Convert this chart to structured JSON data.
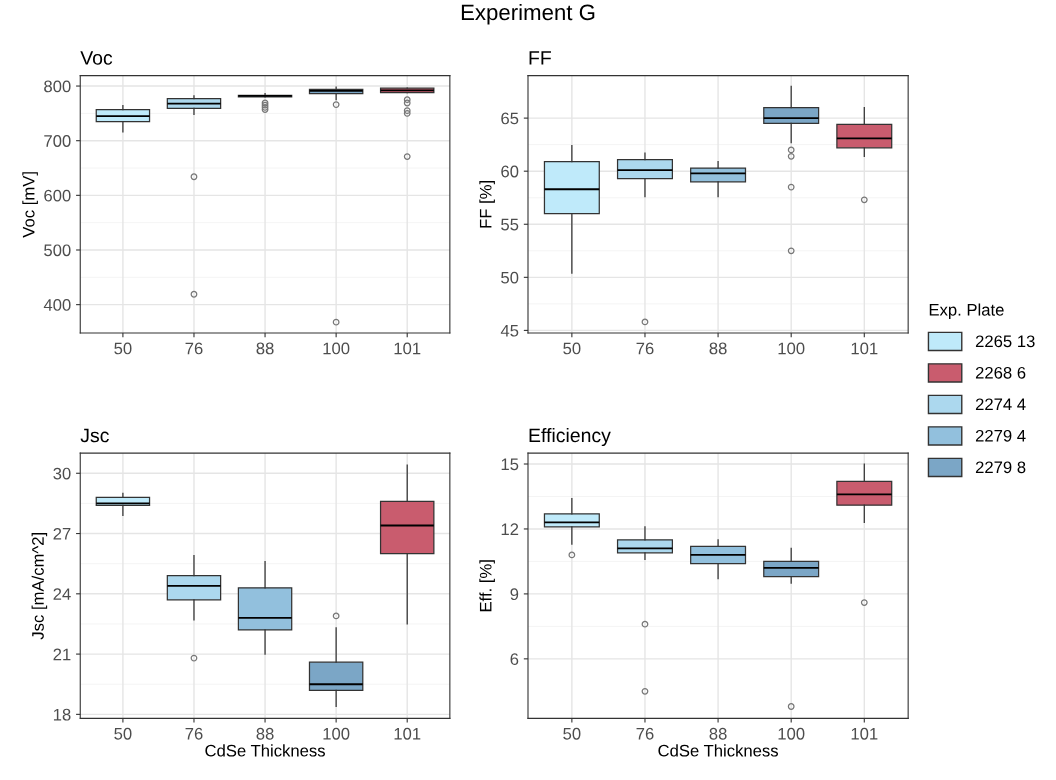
{
  "chart_data": [
    {
      "type": "box",
      "title": "Voc",
      "ylabel": "Voc [mV]",
      "annotations": [
        "Experiment G"
      ],
      "legend": "right",
      "legend_title": "Exp. Plate",
      "categories": [
        "50",
        "76",
        "88",
        "100",
        "101"
      ],
      "ylim": [
        348,
        819
      ],
      "yticks": [
        400,
        500,
        600,
        700,
        800
      ],
      "grid": true,
      "series": [
        {
          "name": "2265 13",
          "color": "#bfeafa",
          "boxes": [
            {
              "low": 716,
              "q1": 735,
              "median": 745,
              "q3": 757,
              "high": 764
            },
            null,
            null,
            null,
            null
          ]
        },
        {
          "name": "2268 6",
          "color": "#c95c6e",
          "boxes": [
            null,
            null,
            null,
            null,
            {
              "low": 788,
              "q1": 788,
              "median": 792,
              "q3": 796,
              "high": 796,
              "outliers": [
                775,
                769,
                755,
                750,
                671
              ]
            }
          ]
        },
        {
          "name": "2274 4",
          "color": "#acd8ee",
          "boxes": [
            null,
            {
              "low": 748,
              "q1": 759,
              "median": 768,
              "q3": 777,
              "high": 782,
              "outliers": [
                634,
                419
              ]
            },
            null,
            null,
            null
          ]
        },
        {
          "name": "2279 4",
          "color": "#92c0dd",
          "boxes": [
            null,
            null,
            {
              "low": 780,
              "q1": 780,
              "median": 782,
              "q3": 783,
              "high": 786,
              "outliers": [
                769,
                765,
                761,
                757
              ]
            },
            null,
            null
          ]
        },
        {
          "name": "2279 8",
          "color": "#7ba6c6",
          "boxes": [
            null,
            null,
            null,
            {
              "low": 775,
              "q1": 786,
              "median": 791,
              "q3": 794,
              "high": 798,
              "outliers": [
                766,
                368
              ]
            },
            null
          ]
        }
      ]
    },
    {
      "type": "box",
      "title": "FF",
      "ylabel": "FF [%]",
      "categories": [
        "50",
        "76",
        "88",
        "100",
        "101"
      ],
      "ylim": [
        44.75,
        69.0
      ],
      "yticks": [
        45,
        50,
        55,
        60,
        65
      ],
      "grid": true,
      "series": [
        {
          "color": "#bfeafa",
          "boxes": [
            {
              "low": 50.4,
              "q1": 56.0,
              "median": 58.3,
              "q3": 60.9,
              "high": 62.4
            },
            null,
            null,
            null,
            null
          ]
        },
        {
          "color": "#c95c6e",
          "boxes": [
            null,
            null,
            null,
            null,
            {
              "low": 61.4,
              "q1": 62.2,
              "median": 63.1,
              "q3": 64.4,
              "high": 66.0,
              "outliers": [
                57.3
              ]
            }
          ]
        },
        {
          "color": "#acd8ee",
          "boxes": [
            null,
            {
              "low": 57.6,
              "q1": 59.3,
              "median": 60.1,
              "q3": 61.1,
              "high": 61.7,
              "outliers": [
                45.8
              ]
            },
            null,
            null,
            null
          ]
        },
        {
          "color": "#92c0dd",
          "boxes": [
            null,
            null,
            {
              "low": 57.6,
              "q1": 59.0,
              "median": 59.8,
              "q3": 60.3,
              "high": 60.9
            },
            null,
            null
          ]
        },
        {
          "color": "#7ba6c6",
          "boxes": [
            null,
            null,
            null,
            {
              "low": 62.7,
              "q1": 64.5,
              "median": 65.0,
              "q3": 66.0,
              "high": 68.0,
              "outliers": [
                62.0,
                61.4,
                58.5,
                52.5
              ]
            },
            null
          ]
        }
      ]
    },
    {
      "type": "box",
      "title": "Jsc",
      "xlabel": "CdSe Thickness",
      "ylabel": "Jsc [mA/cm^2]",
      "categories": [
        "50",
        "76",
        "88",
        "100",
        "101"
      ],
      "ylim": [
        17.8,
        31.0
      ],
      "yticks": [
        18,
        21,
        24,
        27,
        30
      ],
      "grid": true,
      "series": [
        {
          "color": "#bfeafa",
          "boxes": [
            {
              "low": 27.9,
              "q1": 28.4,
              "median": 28.5,
              "q3": 28.8,
              "high": 29.0
            },
            null,
            null,
            null,
            null
          ]
        },
        {
          "color": "#c95c6e",
          "boxes": [
            null,
            null,
            null,
            null,
            {
              "low": 22.5,
              "q1": 26.0,
              "median": 27.4,
              "q3": 28.6,
              "high": 30.4
            }
          ]
        },
        {
          "color": "#acd8ee",
          "boxes": [
            null,
            {
              "low": 22.7,
              "q1": 23.7,
              "median": 24.4,
              "q3": 24.9,
              "high": 25.9,
              "outliers": [
                20.8
              ]
            },
            null,
            null,
            null
          ]
        },
        {
          "color": "#92c0dd",
          "boxes": [
            null,
            null,
            {
              "low": 21.0,
              "q1": 22.2,
              "median": 22.8,
              "q3": 24.3,
              "high": 25.6
            },
            null,
            null
          ]
        },
        {
          "color": "#7ba6c6",
          "boxes": [
            null,
            null,
            null,
            {
              "low": 18.4,
              "q1": 19.2,
              "median": 19.5,
              "q3": 20.6,
              "high": 22.3,
              "outliers": [
                22.9
              ]
            },
            null
          ]
        }
      ]
    },
    {
      "type": "box",
      "title": "Efficiency",
      "xlabel": "CdSe Thickness",
      "ylabel": "Eff. [%]",
      "categories": [
        "50",
        "76",
        "88",
        "100",
        "101"
      ],
      "ylim": [
        3.25,
        15.5
      ],
      "yticks": [
        6,
        9,
        12,
        15
      ],
      "grid": true,
      "series": [
        {
          "color": "#bfeafa",
          "boxes": [
            {
              "low": 11.3,
              "q1": 12.1,
              "median": 12.3,
              "q3": 12.7,
              "high": 13.4,
              "outliers": [
                10.8
              ]
            },
            null,
            null,
            null,
            null
          ]
        },
        {
          "color": "#c95c6e",
          "boxes": [
            null,
            null,
            null,
            null,
            {
              "low": 12.3,
              "q1": 13.1,
              "median": 13.6,
              "q3": 14.2,
              "high": 15.0,
              "outliers": [
                8.6
              ]
            }
          ]
        },
        {
          "color": "#acd8ee",
          "boxes": [
            null,
            {
              "low": 10.6,
              "q1": 10.9,
              "median": 11.1,
              "q3": 11.5,
              "high": 12.1,
              "outliers": [
                7.6,
                4.5
              ]
            },
            null,
            null,
            null
          ]
        },
        {
          "color": "#92c0dd",
          "boxes": [
            null,
            null,
            {
              "low": 9.7,
              "q1": 10.4,
              "median": 10.8,
              "q3": 11.2,
              "high": 11.5
            },
            null,
            null
          ]
        },
        {
          "color": "#7ba6c6",
          "boxes": [
            null,
            null,
            null,
            {
              "low": 9.5,
              "q1": 9.8,
              "median": 10.2,
              "q3": 10.5,
              "high": 11.1,
              "outliers": [
                3.8
              ]
            },
            null
          ]
        }
      ]
    }
  ]
}
